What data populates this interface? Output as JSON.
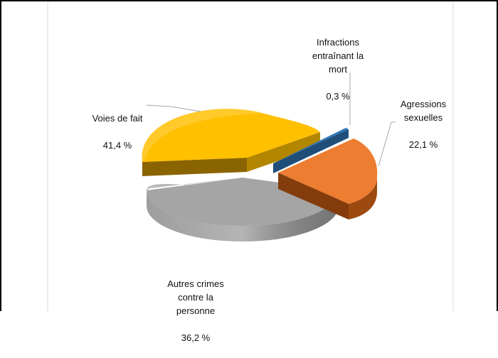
{
  "chart_data": {
    "type": "pie",
    "title": "",
    "style": "3d-exploded",
    "slices": [
      {
        "label": "Agressions\nsexuelles",
        "value_label": "22,1 %",
        "value": 22.1,
        "color": "#ed7d31"
      },
      {
        "label": "Infractions\nentraînant la\nmort",
        "value_label": "0,3 %",
        "value": 0.3,
        "color": "#2e75b6"
      },
      {
        "label": "Voies de fait",
        "value_label": "41,4 %",
        "value": 41.4,
        "color": "#ffc000"
      },
      {
        "label": "Autres crimes\ncontre la\npersonne",
        "value_label": "36,2 %",
        "value": 36.2,
        "color": "#a5a5a5"
      }
    ]
  }
}
